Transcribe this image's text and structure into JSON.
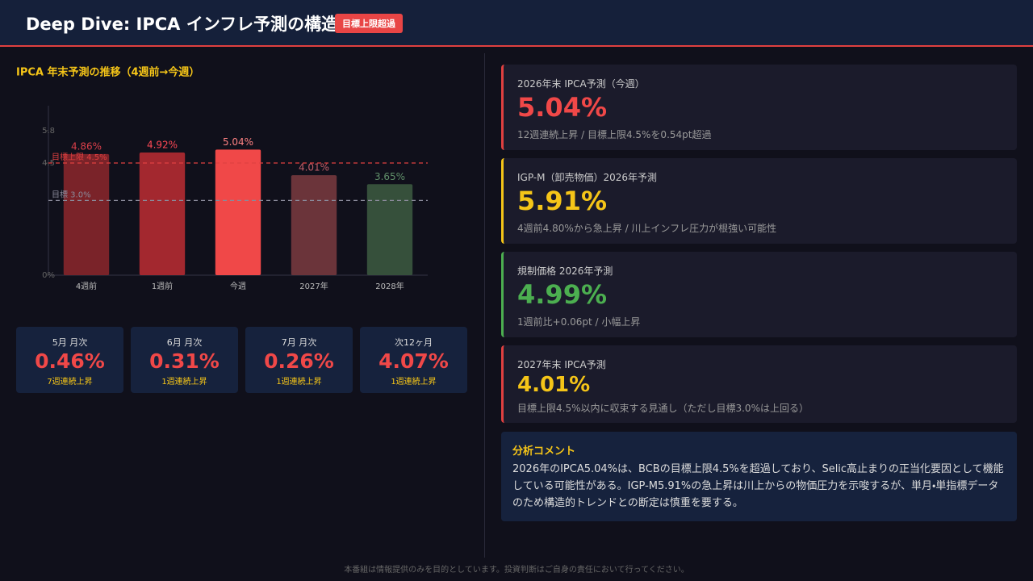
{
  "header": {
    "title": "Deep Dive: IPCA インフレ予測の構造",
    "badge": "目標上限超過"
  },
  "chart_data": {
    "type": "bar",
    "title": "IPCA 年末予測の推移（4週前→今週）",
    "categories": [
      "4週前",
      "1週前",
      "今週",
      "2027年",
      "2028年"
    ],
    "values": [
      4.86,
      4.92,
      5.04,
      4.01,
      3.65
    ],
    "value_labels": [
      "4.86%",
      "4.92%",
      "5.04%",
      "4.01%",
      "3.65%"
    ],
    "colors": [
      "#7a2329",
      "#a3282f",
      "#f04848",
      "#6b343a",
      "#36503b"
    ],
    "ylim": [
      0,
      6.8
    ],
    "yticks": [
      {
        "value": 0,
        "label": "0%"
      },
      4.5,
      5.8
    ],
    "reference_lines": [
      {
        "value": 3.0,
        "label": "目標 3.0%",
        "color": "#8a8a9a"
      },
      {
        "value": 4.5,
        "label": "目標上限 4.5%",
        "color": "#e04040"
      }
    ]
  },
  "stats": [
    {
      "label": "5月 月次",
      "value": "0.46%",
      "note": "7週連続上昇"
    },
    {
      "label": "6月 月次",
      "value": "0.31%",
      "note": "1週連続上昇"
    },
    {
      "label": "7月 月次",
      "value": "0.26%",
      "note": "1週連続上昇"
    },
    {
      "label": "次12ヶ月",
      "value": "4.07%",
      "note": "1週連続上昇"
    }
  ],
  "cards": [
    {
      "label": "2026年末 IPCA予測（今週）",
      "value": "5.04%",
      "note": "12週連続上昇 / 目標上限4.5%を0.54pt超過",
      "accent": "#e04040",
      "value_color": "#f04848"
    },
    {
      "label": "IGP-M（卸売物価）2026年予測",
      "value": "5.91%",
      "note": "4週前4.80%から急上昇 / 川上インフレ圧力が根強い可能性",
      "accent": "#f5c518",
      "value_color": "#f5c518"
    },
    {
      "label": "規制価格 2026年予測",
      "value": "4.99%",
      "note": "1週前比+0.06pt / 小幅上昇",
      "accent": "#4caf50",
      "value_color": "#4caf50"
    },
    {
      "label": "2027年末 IPCA予測",
      "value": "4.01%",
      "note": "目標上限4.5%以内に収束する見通し（ただし目標3.0%は上回る）",
      "accent": "#e04040",
      "value_color": "#f5c518"
    }
  ],
  "comment": {
    "title": "分析コメント",
    "text": "2026年のIPCA5.04%は、BCBの目標上限4.5%を超過しており、Selic高止まりの正当化要因として機能している可能性がある。IGP-M5.91%の急上昇は川上からの物価圧力を示唆するが、単月・単指標データのため構造的トレンドとの断定は慎重を要する。"
  },
  "footer": "本番組は情報提供のみを目的としています。投資判断はご自身の責任において行ってください。"
}
